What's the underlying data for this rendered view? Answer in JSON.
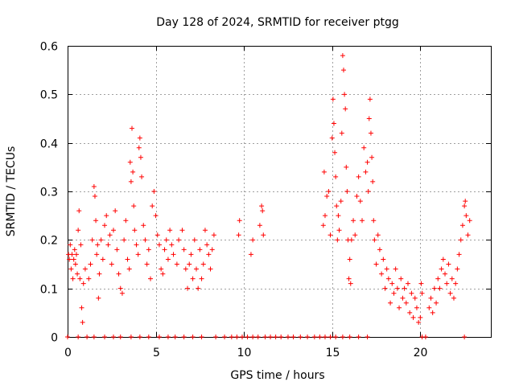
{
  "chart_data": {
    "type": "scatter",
    "title": "Day 128 of 2024, SRMTID for receiver ptgg",
    "xlabel": "GPS time / hours",
    "ylabel": "SRMTID / TECUs",
    "xlim": [
      0,
      24
    ],
    "ylim": [
      0,
      0.6
    ],
    "xticks": [
      0,
      5,
      10,
      15,
      20
    ],
    "yticks": [
      0,
      0.1,
      0.2,
      0.3,
      0.4,
      0.5,
      0.6
    ],
    "xtick_labels": [
      "0",
      "5",
      "10",
      "15",
      "20"
    ],
    "ytick_labels": [
      "0",
      "0.1",
      "0.2",
      "0.3",
      "0.4",
      "0.5",
      "0.6"
    ],
    "grid": true,
    "marker": "+",
    "color": "#ff0000",
    "series": [
      {
        "name": "SRMTID",
        "points": [
          [
            0.05,
            0.17
          ],
          [
            0.1,
            0.16
          ],
          [
            0.15,
            0.19
          ],
          [
            0.2,
            0.14
          ],
          [
            0.25,
            0.17
          ],
          [
            0.3,
            0.12
          ],
          [
            0.35,
            0.16
          ],
          [
            0.4,
            0.18
          ],
          [
            0.45,
            0.15
          ],
          [
            0.5,
            0.17
          ],
          [
            0.55,
            0.13
          ],
          [
            0.6,
            0.22
          ],
          [
            0.65,
            0.26
          ],
          [
            0.7,
            0.12
          ],
          [
            0.75,
            0.19
          ],
          [
            0.8,
            0.06
          ],
          [
            0.85,
            0.03
          ],
          [
            0.9,
            0.11
          ],
          [
            1.0,
            0.14
          ],
          [
            1.2,
            0.12
          ],
          [
            1.3,
            0.15
          ],
          [
            1.4,
            0.2
          ],
          [
            1.5,
            0.31
          ],
          [
            1.55,
            0.29
          ],
          [
            1.6,
            0.24
          ],
          [
            1.65,
            0.17
          ],
          [
            1.7,
            0.19
          ],
          [
            1.75,
            0.08
          ],
          [
            1.8,
            0.13
          ],
          [
            1.9,
            0.2
          ],
          [
            2.0,
            0.16
          ],
          [
            2.1,
            0.23
          ],
          [
            2.2,
            0.25
          ],
          [
            2.3,
            0.19
          ],
          [
            2.4,
            0.21
          ],
          [
            2.5,
            0.15
          ],
          [
            2.6,
            0.22
          ],
          [
            2.7,
            0.26
          ],
          [
            2.8,
            0.18
          ],
          [
            2.9,
            0.13
          ],
          [
            3.0,
            0.1
          ],
          [
            3.1,
            0.09
          ],
          [
            3.2,
            0.2
          ],
          [
            3.3,
            0.24
          ],
          [
            3.4,
            0.16
          ],
          [
            3.5,
            0.14
          ],
          [
            3.55,
            0.36
          ],
          [
            3.6,
            0.32
          ],
          [
            3.65,
            0.43
          ],
          [
            3.7,
            0.34
          ],
          [
            3.75,
            0.27
          ],
          [
            3.8,
            0.22
          ],
          [
            3.9,
            0.19
          ],
          [
            4.0,
            0.17
          ],
          [
            4.05,
            0.39
          ],
          [
            4.1,
            0.41
          ],
          [
            4.15,
            0.37
          ],
          [
            4.2,
            0.33
          ],
          [
            4.3,
            0.23
          ],
          [
            4.4,
            0.2
          ],
          [
            4.5,
            0.15
          ],
          [
            4.6,
            0.18
          ],
          [
            4.7,
            0.12
          ],
          [
            4.8,
            0.27
          ],
          [
            4.9,
            0.3
          ],
          [
            5.0,
            0.25
          ],
          [
            5.1,
            0.21
          ],
          [
            5.2,
            0.19
          ],
          [
            5.3,
            0.14
          ],
          [
            5.4,
            0.13
          ],
          [
            5.5,
            0.18
          ],
          [
            5.6,
            0.2
          ],
          [
            5.7,
            0.16
          ],
          [
            5.8,
            0.22
          ],
          [
            5.9,
            0.19
          ],
          [
            6.0,
            0.17
          ],
          [
            6.2,
            0.15
          ],
          [
            6.3,
            0.2
          ],
          [
            6.5,
            0.22
          ],
          [
            6.6,
            0.18
          ],
          [
            6.7,
            0.14
          ],
          [
            6.8,
            0.1
          ],
          [
            6.9,
            0.15
          ],
          [
            7.0,
            0.17
          ],
          [
            7.1,
            0.12
          ],
          [
            7.2,
            0.2
          ],
          [
            7.3,
            0.14
          ],
          [
            7.4,
            0.1
          ],
          [
            7.5,
            0.18
          ],
          [
            7.6,
            0.12
          ],
          [
            7.7,
            0.15
          ],
          [
            7.8,
            0.22
          ],
          [
            7.9,
            0.19
          ],
          [
            8.0,
            0.17
          ],
          [
            8.1,
            0.14
          ],
          [
            8.2,
            0.18
          ],
          [
            8.3,
            0.21
          ],
          [
            9.7,
            0.21
          ],
          [
            9.75,
            0.24
          ],
          [
            10.4,
            0.17
          ],
          [
            10.5,
            0.2
          ],
          [
            10.9,
            0.23
          ],
          [
            11.0,
            0.27
          ],
          [
            11.05,
            0.26
          ],
          [
            11.1,
            0.21
          ],
          [
            14.5,
            0.23
          ],
          [
            14.55,
            0.34
          ],
          [
            14.6,
            0.25
          ],
          [
            14.7,
            0.29
          ],
          [
            14.8,
            0.3
          ],
          [
            14.9,
            0.21
          ],
          [
            15.0,
            0.41
          ],
          [
            15.05,
            0.49
          ],
          [
            15.1,
            0.44
          ],
          [
            15.15,
            0.38
          ],
          [
            15.2,
            0.33
          ],
          [
            15.25,
            0.27
          ],
          [
            15.3,
            0.2
          ],
          [
            15.35,
            0.25
          ],
          [
            15.4,
            0.22
          ],
          [
            15.5,
            0.28
          ],
          [
            15.55,
            0.42
          ],
          [
            15.6,
            0.58
          ],
          [
            15.65,
            0.55
          ],
          [
            15.7,
            0.5
          ],
          [
            15.75,
            0.47
          ],
          [
            15.8,
            0.35
          ],
          [
            15.85,
            0.3
          ],
          [
            15.9,
            0.2
          ],
          [
            15.95,
            0.12
          ],
          [
            16.0,
            0.16
          ],
          [
            16.05,
            0.11
          ],
          [
            16.1,
            0.2
          ],
          [
            16.2,
            0.24
          ],
          [
            16.3,
            0.21
          ],
          [
            16.4,
            0.29
          ],
          [
            16.5,
            0.33
          ],
          [
            16.6,
            0.28
          ],
          [
            16.7,
            0.24
          ],
          [
            16.8,
            0.39
          ],
          [
            16.9,
            0.34
          ],
          [
            17.0,
            0.36
          ],
          [
            17.05,
            0.3
          ],
          [
            17.1,
            0.45
          ],
          [
            17.15,
            0.49
          ],
          [
            17.2,
            0.42
          ],
          [
            17.25,
            0.37
          ],
          [
            17.3,
            0.32
          ],
          [
            17.35,
            0.24
          ],
          [
            17.4,
            0.2
          ],
          [
            17.5,
            0.15
          ],
          [
            17.6,
            0.21
          ],
          [
            17.7,
            0.18
          ],
          [
            17.8,
            0.13
          ],
          [
            17.9,
            0.16
          ],
          [
            18.0,
            0.1
          ],
          [
            18.1,
            0.14
          ],
          [
            18.2,
            0.12
          ],
          [
            18.3,
            0.07
          ],
          [
            18.4,
            0.11
          ],
          [
            18.5,
            0.09
          ],
          [
            18.6,
            0.14
          ],
          [
            18.7,
            0.1
          ],
          [
            18.8,
            0.06
          ],
          [
            18.9,
            0.12
          ],
          [
            19.0,
            0.08
          ],
          [
            19.1,
            0.1
          ],
          [
            19.2,
            0.07
          ],
          [
            19.3,
            0.11
          ],
          [
            19.4,
            0.05
          ],
          [
            19.5,
            0.09
          ],
          [
            19.6,
            0.04
          ],
          [
            19.7,
            0.08
          ],
          [
            19.8,
            0.06
          ],
          [
            19.9,
            0.03
          ],
          [
            20.0,
            0.04
          ],
          [
            20.05,
            0.11
          ],
          [
            20.1,
            0.09
          ],
          [
            20.5,
            0.06
          ],
          [
            20.6,
            0.08
          ],
          [
            20.7,
            0.05
          ],
          [
            20.8,
            0.1
          ],
          [
            20.9,
            0.07
          ],
          [
            21.0,
            0.12
          ],
          [
            21.1,
            0.1
          ],
          [
            21.2,
            0.14
          ],
          [
            21.3,
            0.16
          ],
          [
            21.4,
            0.13
          ],
          [
            21.5,
            0.11
          ],
          [
            21.6,
            0.15
          ],
          [
            21.7,
            0.09
          ],
          [
            21.8,
            0.12
          ],
          [
            21.9,
            0.08
          ],
          [
            22.0,
            0.11
          ],
          [
            22.1,
            0.14
          ],
          [
            22.2,
            0.17
          ],
          [
            22.3,
            0.2
          ],
          [
            22.4,
            0.23
          ],
          [
            22.5,
            0.27
          ],
          [
            22.55,
            0.28
          ],
          [
            22.6,
            0.25
          ],
          [
            22.7,
            0.21
          ],
          [
            22.8,
            0.24
          ],
          [
            0.0,
            0.0
          ],
          [
            0.6,
            0.0
          ],
          [
            1.1,
            0.0
          ],
          [
            1.5,
            0.0
          ],
          [
            2.1,
            0.0
          ],
          [
            2.6,
            0.0
          ],
          [
            3.0,
            0.0
          ],
          [
            3.6,
            0.0
          ],
          [
            4.1,
            0.0
          ],
          [
            4.6,
            0.0
          ],
          [
            5.2,
            0.0
          ],
          [
            5.7,
            0.0
          ],
          [
            6.1,
            0.0
          ],
          [
            6.6,
            0.0
          ],
          [
            7.1,
            0.0
          ],
          [
            7.6,
            0.0
          ],
          [
            8.4,
            0.0
          ],
          [
            8.9,
            0.0
          ],
          [
            9.3,
            0.0
          ],
          [
            9.6,
            0.0
          ],
          [
            9.9,
            0.0
          ],
          [
            10.2,
            0.0
          ],
          [
            10.5,
            0.0
          ],
          [
            10.8,
            0.0
          ],
          [
            11.2,
            0.0
          ],
          [
            11.5,
            0.0
          ],
          [
            11.8,
            0.0
          ],
          [
            12.1,
            0.0
          ],
          [
            12.5,
            0.0
          ],
          [
            12.8,
            0.0
          ],
          [
            13.2,
            0.0
          ],
          [
            13.6,
            0.0
          ],
          [
            14.0,
            0.0
          ],
          [
            14.3,
            0.0
          ],
          [
            14.6,
            0.0
          ],
          [
            14.9,
            0.0
          ],
          [
            15.2,
            0.0
          ],
          [
            15.6,
            0.0
          ],
          [
            16.0,
            0.0
          ],
          [
            16.5,
            0.0
          ],
          [
            17.0,
            0.0
          ],
          [
            20.1,
            0.0
          ],
          [
            20.3,
            0.0
          ],
          [
            22.5,
            0.0
          ]
        ]
      }
    ]
  }
}
